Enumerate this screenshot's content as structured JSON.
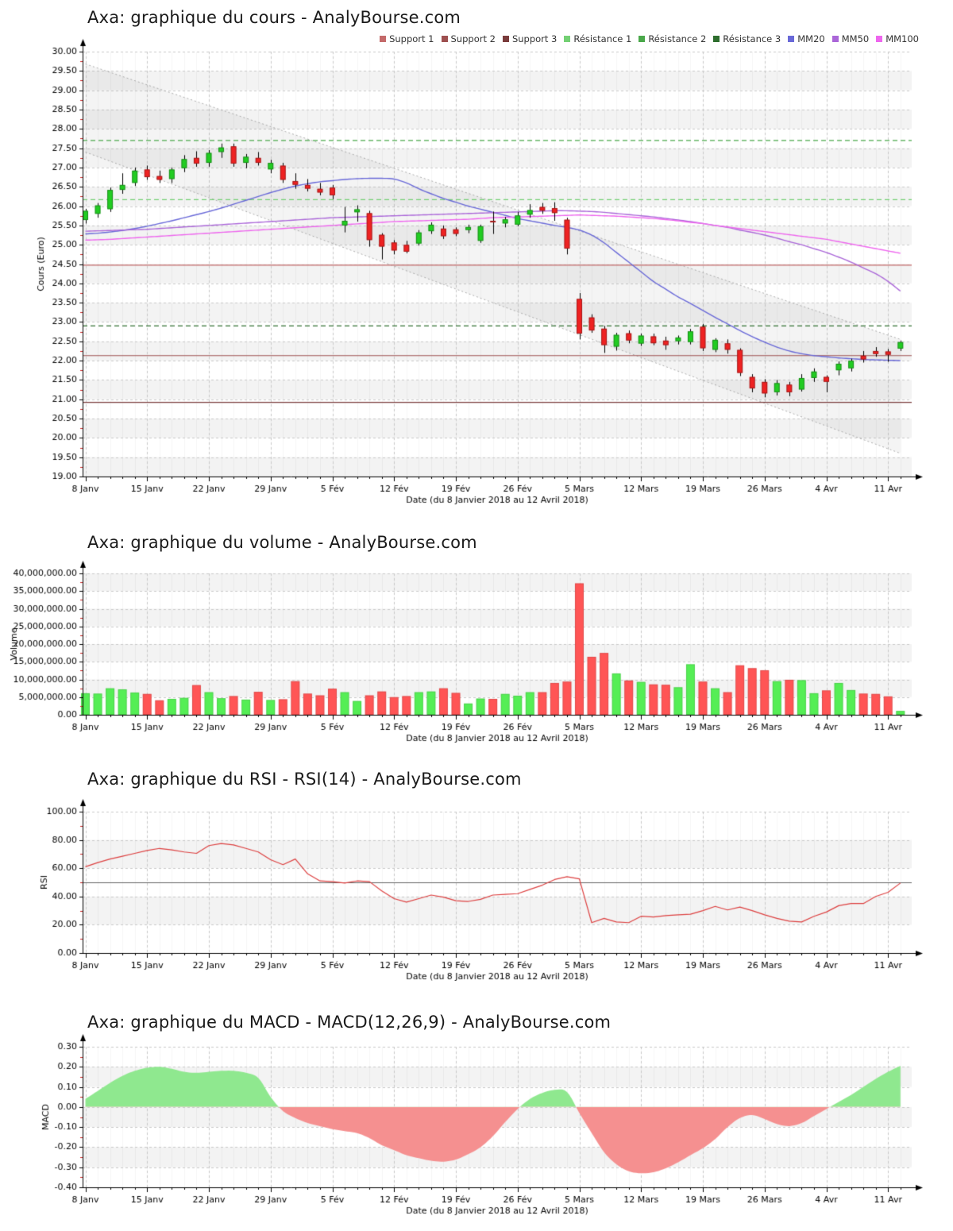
{
  "x_axis": {
    "title": "Date (du 8 Janvier 2018 au 12 Avril 2018)",
    "tick_labels": [
      "8 Janv",
      "15 Janv",
      "22 Janv",
      "29 Janv",
      "5 Fév",
      "12 Fév",
      "19 Fév",
      "26 Fév",
      "5 Mars",
      "12 Mars",
      "19 Mars",
      "26 Mars",
      "4 Avr",
      "11 Avr"
    ],
    "tick_days": [
      0,
      5,
      10,
      15,
      20,
      25,
      30,
      35,
      40,
      45,
      50,
      55,
      60,
      65
    ],
    "n_sessions": 67
  },
  "chart_data": [
    {
      "id": "cours",
      "type": "candlestick",
      "title": "Axa: graphique du cours - AnalyBourse.com",
      "ylabel": "Cours (Euro)",
      "ylim": [
        19.0,
        30.0
      ],
      "ystep": 0.5,
      "y_tick_labels": [
        "30.00",
        "29.50",
        "29.00",
        "28.50",
        "28.00",
        "27.50",
        "27.00",
        "26.50",
        "26.00",
        "25.50",
        "25.00",
        "24.50",
        "24.00",
        "23.50",
        "23.00",
        "22.50",
        "22.00",
        "21.50",
        "21.00",
        "20.50",
        "20.00",
        "19.50",
        "19.00"
      ],
      "colors": {
        "up": "#22cc22",
        "down": "#ee2222"
      },
      "legend": [
        {
          "label": "Support 1",
          "color": "#c46a6a"
        },
        {
          "label": "Support 2",
          "color": "#9e5050"
        },
        {
          "label": "Support 3",
          "color": "#7a3c3c"
        },
        {
          "label": "Résistance 1",
          "color": "#74d074"
        },
        {
          "label": "Résistance 2",
          "color": "#4aa84a"
        },
        {
          "label": "Résistance 3",
          "color": "#2e6e2e"
        },
        {
          "label": "MM20",
          "color": "#6969d8"
        },
        {
          "label": "MM50",
          "color": "#aa66d8"
        },
        {
          "label": "MM100",
          "color": "#ee66ee"
        }
      ],
      "levels": {
        "support": [
          {
            "label": "Support 1",
            "value": 24.47,
            "color": "#c46a6a"
          },
          {
            "label": "Support 2",
            "value": 22.13,
            "color": "#9e5050"
          },
          {
            "label": "Support 3",
            "value": 20.92,
            "color": "#7a3c3c"
          }
        ],
        "resistance": [
          {
            "label": "Résistance 1",
            "value": 26.17,
            "color": "#74d074"
          },
          {
            "label": "Résistance 2",
            "value": 27.7,
            "color": "#4aa84a"
          },
          {
            "label": "Résistance 3",
            "value": 22.9,
            "color": "#2e6e2e"
          }
        ]
      },
      "channel": {
        "upper": [
          29.68,
          22.55
        ],
        "lower": [
          27.4,
          19.6
        ],
        "color": "#aaaaaa"
      },
      "candles": [
        [
          25.64,
          25.93,
          25.55,
          25.88
        ],
        [
          25.8,
          26.08,
          25.7,
          26.02
        ],
        [
          25.92,
          26.48,
          25.85,
          26.42
        ],
        [
          26.42,
          26.85,
          26.32,
          26.55
        ],
        [
          26.6,
          27.0,
          26.52,
          26.92
        ],
        [
          26.95,
          27.05,
          26.68,
          26.75
        ],
        [
          26.78,
          26.92,
          26.6,
          26.68
        ],
        [
          26.7,
          27.0,
          26.6,
          26.95
        ],
        [
          26.98,
          27.32,
          26.88,
          27.22
        ],
        [
          27.25,
          27.42,
          27.02,
          27.1
        ],
        [
          27.12,
          27.45,
          27.02,
          27.38
        ],
        [
          27.4,
          27.62,
          27.25,
          27.52
        ],
        [
          27.55,
          27.62,
          27.02,
          27.1
        ],
        [
          27.12,
          27.35,
          26.98,
          27.28
        ],
        [
          27.25,
          27.4,
          27.05,
          27.12
        ],
        [
          26.95,
          27.2,
          26.85,
          27.12
        ],
        [
          27.05,
          27.12,
          26.6,
          26.68
        ],
        [
          26.65,
          26.85,
          26.45,
          26.55
        ],
        [
          26.55,
          26.7,
          26.38,
          26.45
        ],
        [
          26.45,
          26.6,
          26.28,
          26.35
        ],
        [
          26.48,
          26.55,
          26.18,
          26.28
        ],
        [
          25.5,
          25.98,
          25.32,
          25.62
        ],
        [
          25.84,
          26.02,
          25.6,
          25.92
        ],
        [
          25.82,
          25.88,
          24.95,
          25.12
        ],
        [
          25.26,
          25.3,
          24.62,
          24.95
        ],
        [
          25.06,
          25.12,
          24.75,
          24.85
        ],
        [
          25.0,
          25.1,
          24.78,
          24.82
        ],
        [
          25.03,
          25.38,
          24.98,
          25.32
        ],
        [
          25.35,
          25.58,
          25.28,
          25.52
        ],
        [
          25.42,
          25.5,
          25.15,
          25.22
        ],
        [
          25.4,
          25.45,
          25.22,
          25.28
        ],
        [
          25.38,
          25.52,
          25.3,
          25.46
        ],
        [
          25.1,
          25.52,
          25.05,
          25.48
        ],
        [
          25.62,
          25.86,
          25.28,
          25.58
        ],
        [
          25.55,
          25.72,
          25.45,
          25.66
        ],
        [
          25.52,
          25.85,
          25.48,
          25.76
        ],
        [
          25.78,
          26.05,
          25.7,
          25.9
        ],
        [
          25.98,
          26.08,
          25.8,
          25.88
        ],
        [
          25.95,
          26.1,
          25.62,
          25.82
        ],
        [
          25.65,
          25.7,
          24.75,
          24.9
        ],
        [
          23.6,
          23.75,
          22.55,
          22.7
        ],
        [
          23.12,
          23.2,
          22.72,
          22.78
        ],
        [
          22.83,
          22.9,
          22.2,
          22.4
        ],
        [
          22.36,
          22.72,
          22.26,
          22.67
        ],
        [
          22.71,
          22.78,
          22.45,
          22.52
        ],
        [
          22.44,
          22.7,
          22.38,
          22.65
        ],
        [
          22.63,
          22.7,
          22.4,
          22.45
        ],
        [
          22.52,
          22.62,
          22.28,
          22.4
        ],
        [
          22.5,
          22.65,
          22.42,
          22.6
        ],
        [
          22.48,
          22.82,
          22.42,
          22.76
        ],
        [
          22.88,
          22.95,
          22.25,
          22.32
        ],
        [
          22.28,
          22.58,
          22.22,
          22.54
        ],
        [
          22.45,
          22.55,
          22.18,
          22.28
        ],
        [
          22.28,
          22.32,
          21.6,
          21.68
        ],
        [
          21.58,
          21.65,
          21.18,
          21.28
        ],
        [
          21.45,
          21.52,
          21.05,
          21.15
        ],
        [
          21.18,
          21.5,
          21.1,
          21.42
        ],
        [
          21.38,
          21.45,
          21.08,
          21.18
        ],
        [
          21.25,
          21.65,
          21.2,
          21.55
        ],
        [
          21.55,
          21.8,
          21.45,
          21.72
        ],
        [
          21.58,
          21.62,
          21.18,
          21.45
        ],
        [
          21.75,
          21.98,
          21.62,
          21.92
        ],
        [
          21.8,
          22.05,
          21.72,
          22.0
        ],
        [
          22.13,
          22.25,
          21.95,
          22.03
        ],
        [
          22.25,
          22.35,
          22.1,
          22.17
        ],
        [
          22.24,
          22.3,
          21.97,
          22.15
        ],
        [
          22.31,
          22.52,
          22.25,
          22.48
        ]
      ],
      "overlays": [
        {
          "name": "MM20",
          "color": "#6969d8",
          "values": [
            25.28,
            25.3,
            25.33,
            25.37,
            25.42,
            25.48,
            25.55,
            25.62,
            25.7,
            25.78,
            25.86,
            25.95,
            26.05,
            26.15,
            26.25,
            26.35,
            26.44,
            26.52,
            26.58,
            26.63,
            26.66,
            26.69,
            26.71,
            26.72,
            26.72,
            26.7,
            26.6,
            26.45,
            26.32,
            26.2,
            26.1,
            26.0,
            25.92,
            25.84,
            25.76,
            25.68,
            25.62,
            25.56,
            25.5,
            25.45,
            25.38,
            25.25,
            25.05,
            24.8,
            24.55,
            24.3,
            24.05,
            23.85,
            23.65,
            23.48,
            23.3,
            23.12,
            22.95,
            22.78,
            22.62,
            22.48,
            22.35,
            22.25,
            22.18,
            22.13,
            22.1,
            22.07,
            22.05,
            22.03,
            22.02,
            22.01,
            22.0
          ]
        },
        {
          "name": "MM50",
          "color": "#aa66d8",
          "values": [
            25.35,
            25.36,
            25.37,
            25.38,
            25.39,
            25.4,
            25.42,
            25.44,
            25.46,
            25.48,
            25.5,
            25.52,
            25.54,
            25.56,
            25.58,
            25.6,
            25.62,
            25.64,
            25.66,
            25.68,
            25.7,
            25.71,
            25.72,
            25.73,
            25.74,
            25.75,
            25.76,
            25.77,
            25.78,
            25.79,
            25.8,
            25.81,
            25.82,
            25.83,
            25.84,
            25.85,
            25.86,
            25.87,
            25.88,
            25.88,
            25.87,
            25.86,
            25.84,
            25.81,
            25.78,
            25.75,
            25.72,
            25.68,
            25.64,
            25.6,
            25.55,
            25.5,
            25.45,
            25.38,
            25.32,
            25.25,
            25.17,
            25.08,
            25.0,
            24.9,
            24.8,
            24.68,
            24.55,
            24.4,
            24.25,
            24.05,
            23.8
          ]
        },
        {
          "name": "MM100",
          "color": "#ee66ee",
          "values": [
            25.12,
            25.13,
            25.14,
            25.16,
            25.18,
            25.2,
            25.22,
            25.24,
            25.26,
            25.28,
            25.3,
            25.32,
            25.34,
            25.36,
            25.38,
            25.4,
            25.42,
            25.44,
            25.46,
            25.48,
            25.5,
            25.52,
            25.54,
            25.56,
            25.58,
            25.6,
            25.61,
            25.62,
            25.63,
            25.64,
            25.65,
            25.66,
            25.68,
            25.7,
            25.71,
            25.72,
            25.73,
            25.74,
            25.75,
            25.76,
            25.77,
            25.76,
            25.75,
            25.74,
            25.72,
            25.7,
            25.68,
            25.65,
            25.62,
            25.58,
            25.55,
            25.5,
            25.46,
            25.42,
            25.38,
            25.34,
            25.3,
            25.26,
            25.22,
            25.18,
            25.14,
            25.08,
            25.02,
            24.96,
            24.9,
            24.84,
            24.78
          ]
        }
      ]
    },
    {
      "id": "volume",
      "type": "bar",
      "title": "Axa: graphique du volume - AnalyBourse.com",
      "ylabel": "Volume",
      "ylim": [
        0,
        40000000
      ],
      "ystep": 5000000,
      "y_tick_labels": [
        "40,000,000.00",
        "35,000,000.00",
        "30,000,000.00",
        "25,000,000.00",
        "20,000,000.00",
        "15,000,000.00",
        "10,000,000.00",
        "5,000,000.00",
        "0.00"
      ],
      "colors": {
        "up": "#55ee55",
        "down": "#ff5555"
      },
      "values": [
        6100000,
        6000000,
        7500000,
        7200000,
        6300000,
        5900000,
        4100000,
        4500000,
        4800000,
        8400000,
        6400000,
        4700000,
        5300000,
        4300000,
        6500000,
        4200000,
        4400000,
        9500000,
        6000000,
        5500000,
        7400000,
        6400000,
        3900000,
        5500000,
        6600000,
        5000000,
        5300000,
        6400000,
        6600000,
        7500000,
        6200000,
        3200000,
        4600000,
        4500000,
        5900000,
        5400000,
        6400000,
        6400000,
        9000000,
        9400000,
        37200000,
        16400000,
        17500000,
        11700000,
        9700000,
        9300000,
        8600000,
        8500000,
        7800000,
        14300000,
        9400000,
        7500000,
        6400000,
        14000000,
        13200000,
        12600000,
        9500000,
        9900000,
        9800000,
        6100000,
        6900000,
        9000000,
        7000000,
        6000000,
        5900000,
        5200000,
        1100000
      ]
    },
    {
      "id": "rsi",
      "type": "line",
      "title": "Axa: graphique du RSI - RSI(14) - AnalyBourse.com",
      "ylabel": "RSI",
      "ylim": [
        0,
        100
      ],
      "ystep": 20,
      "y_tick_labels": [
        "100.00",
        "80.00",
        "60.00",
        "40.00",
        "20.00",
        "0.00"
      ],
      "line_color": "#dd4040",
      "mid_line": 50,
      "values": [
        61,
        64,
        66.5,
        68.5,
        70.5,
        72.5,
        74,
        73,
        71.5,
        70.5,
        76,
        77.5,
        76.5,
        74,
        71.5,
        66,
        62.5,
        66.5,
        56,
        51,
        50.5,
        49.5,
        51,
        50.5,
        44,
        38.5,
        36,
        38.5,
        41,
        39.5,
        37,
        36.5,
        38,
        41,
        41.5,
        42,
        45,
        48,
        52,
        54,
        52.5,
        21.5,
        24.5,
        22,
        21.5,
        26,
        25.5,
        26.5,
        27,
        27.5,
        30,
        33,
        30.5,
        32.5,
        30,
        27,
        24.5,
        22.5,
        22,
        26,
        29,
        33.5,
        35,
        35,
        40,
        43,
        49.5
      ]
    },
    {
      "id": "macd",
      "type": "area",
      "title": "Axa: graphique du MACD - MACD(12,26,9) - AnalyBourse.com",
      "ylabel": "MACD",
      "ylim": [
        -0.4,
        0.3
      ],
      "ystep": 0.1,
      "y_tick_labels": [
        "0.30",
        "0.20",
        "0.10",
        "0.00",
        "-0.10",
        "-0.20",
        "-0.30",
        "-0.40"
      ],
      "positive_color": "#8fe88f",
      "negative_color": "#f59090",
      "values": [
        0.04,
        0.08,
        0.12,
        0.155,
        0.18,
        0.195,
        0.2,
        0.19,
        0.175,
        0.17,
        0.175,
        0.18,
        0.18,
        0.17,
        0.145,
        0.05,
        -0.02,
        -0.055,
        -0.08,
        -0.095,
        -0.11,
        -0.12,
        -0.13,
        -0.155,
        -0.19,
        -0.215,
        -0.24,
        -0.255,
        -0.268,
        -0.272,
        -0.262,
        -0.235,
        -0.2,
        -0.145,
        -0.075,
        -0.01,
        0.04,
        0.07,
        0.085,
        0.075,
        -0.03,
        -0.13,
        -0.225,
        -0.285,
        -0.32,
        -0.33,
        -0.325,
        -0.305,
        -0.275,
        -0.24,
        -0.205,
        -0.16,
        -0.1,
        -0.055,
        -0.04,
        -0.06,
        -0.085,
        -0.095,
        -0.08,
        -0.045,
        -0.01,
        0.025,
        0.06,
        0.1,
        0.14,
        0.175,
        0.205
      ]
    }
  ]
}
